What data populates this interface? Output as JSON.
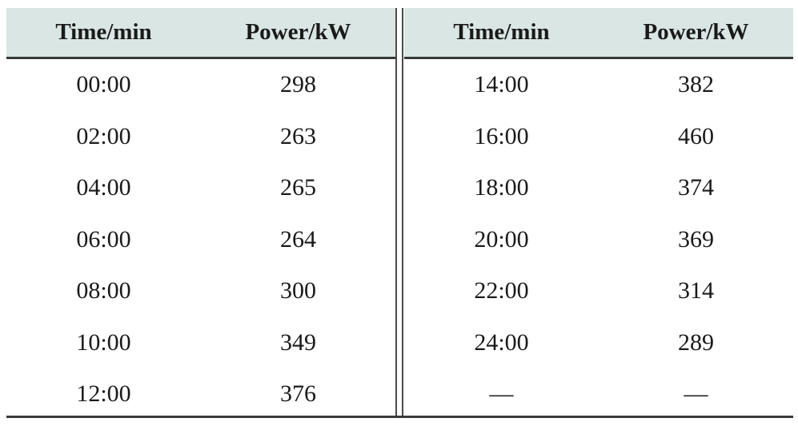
{
  "table": {
    "headers": {
      "time": "Time/min",
      "power": "Power/kW"
    },
    "left": [
      {
        "time": "00:00",
        "power": "298"
      },
      {
        "time": "02:00",
        "power": "263"
      },
      {
        "time": "04:00",
        "power": "265"
      },
      {
        "time": "06:00",
        "power": "264"
      },
      {
        "time": "08:00",
        "power": "300"
      },
      {
        "time": "10:00",
        "power": "349"
      },
      {
        "time": "12:00",
        "power": "376"
      }
    ],
    "right": [
      {
        "time": "14:00",
        "power": "382"
      },
      {
        "time": "16:00",
        "power": "460"
      },
      {
        "time": "18:00",
        "power": "374"
      },
      {
        "time": "20:00",
        "power": "369"
      },
      {
        "time": "22:00",
        "power": "314"
      },
      {
        "time": "24:00",
        "power": "289"
      },
      {
        "time": "—",
        "power": "—"
      }
    ]
  },
  "colors": {
    "header_background": "#d9e6e3",
    "rule": "#3a3a3a"
  }
}
